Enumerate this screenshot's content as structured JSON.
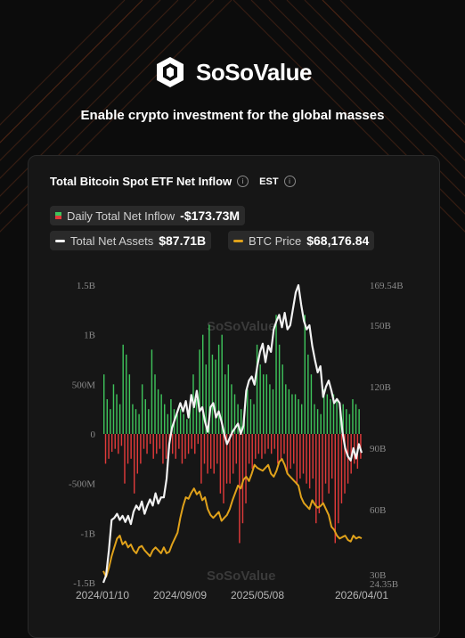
{
  "brand": {
    "name": "SoSoValue",
    "tagline": "Enable crypto investment for the global masses"
  },
  "card": {
    "title": "Total Bitcoin Spot ETF Net Inflow",
    "timezone": "EST",
    "legend": {
      "daily_label": "Daily Total Net Inflow",
      "daily_value": "-$173.73M",
      "assets_label": "Total Net Assets",
      "assets_value": "$87.71B",
      "btc_label": "BTC Price",
      "btc_value": "$68,176.84"
    },
    "watermark": "SoSoValue"
  },
  "colors": {
    "inflow": "#3ec35b",
    "outflow": "#e03a3a",
    "assets": "#f2f2f2",
    "btc": "#e0a21b"
  },
  "chart_data": {
    "type": "bar",
    "title": "Total Bitcoin Spot ETF Net Inflow",
    "x_ticks": [
      "2024/01/10",
      "2024/09/09",
      "2025/05/08",
      "2026/04/01"
    ],
    "y_left": {
      "ticks": [
        "1.5B",
        "1B",
        "500M",
        "0",
        "-500M",
        "-1B",
        "-1.5B"
      ],
      "range": [
        -1500,
        1500
      ],
      "unit": "M USD"
    },
    "y_right": {
      "ticks": [
        "169.54B",
        "150B",
        "120B",
        "90B",
        "60B",
        "30B",
        "24.35B"
      ],
      "range": [
        24.35,
        169.54
      ],
      "unit": "B USD"
    },
    "series": [
      {
        "name": "Daily Total Net Inflow",
        "kind": "bar",
        "axis": "left",
        "values_monthly_sample": [
          [
            600,
            -300,
            350,
            -250,
            250,
            -180
          ],
          [
            500,
            -150,
            400,
            -200,
            300,
            -120
          ],
          [
            900,
            -500,
            800,
            -300,
            600,
            -250
          ],
          [
            300,
            -600,
            250,
            -400,
            200,
            -300
          ],
          [
            500,
            -150,
            350,
            -200,
            250,
            -100
          ],
          [
            850,
            -250,
            600,
            -200,
            450,
            -150
          ],
          [
            400,
            -300,
            300,
            -250,
            200,
            -150
          ],
          [
            350,
            -200,
            250,
            -250,
            200,
            -150
          ],
          [
            250,
            -300,
            200,
            -250,
            150,
            -200
          ],
          [
            300,
            -150,
            600,
            -200,
            350,
            -100
          ],
          [
            850,
            -500,
            1000,
            -300,
            700,
            -400
          ],
          [
            1100,
            -350,
            800,
            -400,
            750,
            -300
          ],
          [
            900,
            -600,
            1000,
            -700,
            600,
            -500
          ],
          [
            700,
            -500,
            500,
            -400,
            400,
            -300
          ],
          [
            300,
            -1100,
            250,
            -900,
            200,
            -700
          ],
          [
            450,
            -300,
            350,
            -350,
            300,
            -250
          ],
          [
            900,
            -200,
            700,
            -250,
            600,
            -200
          ],
          [
            600,
            -150,
            500,
            -200,
            450,
            -150
          ],
          [
            1200,
            -300,
            900,
            -250,
            700,
            -200
          ],
          [
            500,
            -400,
            450,
            -350,
            400,
            -300
          ],
          [
            400,
            -500,
            350,
            -450,
            300,
            -400
          ],
          [
            1200,
            -500,
            800,
            -550,
            600,
            -450
          ],
          [
            300,
            -900,
            250,
            -800,
            200,
            -700
          ],
          [
            450,
            -500,
            400,
            -600,
            350,
            -450
          ],
          [
            400,
            -1100,
            350,
            -900,
            300,
            -700
          ],
          [
            300,
            -600,
            250,
            -500,
            200,
            -400
          ],
          [
            350,
            -300,
            300,
            -350,
            250,
            -250
          ]
        ]
      },
      {
        "name": "Total Net Assets",
        "kind": "line",
        "axis": "right",
        "values": [
          24.35,
          28,
          40,
          55,
          56,
          58,
          55,
          57,
          54,
          57,
          53,
          59,
          62,
          60,
          64,
          58,
          62,
          65,
          62,
          68,
          63,
          66,
          66,
          75,
          92,
          100,
          104,
          108,
          112,
          108,
          113,
          105,
          116,
          110,
          118,
          108,
          110,
          103,
          98,
          110,
          112,
          105,
          108,
          103,
          97,
          92,
          95,
          98,
          100,
          102,
          97,
          101,
          118,
          123,
          125,
          121,
          130,
          137,
          141,
          132,
          140,
          137,
          148,
          152,
          155,
          149,
          156,
          148,
          150,
          158,
          166,
          169.54,
          160,
          152,
          148,
          150,
          140,
          133,
          127,
          130,
          115,
          120,
          123,
          118,
          112,
          114,
          112,
          98,
          90,
          86,
          84,
          90,
          85,
          92,
          87.71
        ]
      },
      {
        "name": "BTC Price",
        "kind": "line",
        "axis": "right",
        "scale_note": "plotted on a normalized scale (not printed)",
        "values": [
          46000,
          42000,
          48000,
          56000,
          62000,
          68000,
          70000,
          64000,
          66000,
          62000,
          64000,
          60000,
          58000,
          62000,
          63000,
          60000,
          58000,
          56000,
          60000,
          62000,
          60000,
          58000,
          62000,
          58000,
          59000,
          64000,
          68000,
          72000,
          82000,
          90000,
          96000,
          95000,
          99000,
          102000,
          98000,
          100000,
          94000,
          96000,
          88000,
          84000,
          82000,
          84000,
          86000,
          80000,
          82000,
          84000,
          88000,
          94000,
          99000,
          104000,
          102000,
          108000,
          110000,
          107000,
          112000,
          118000,
          116000,
          115000,
          114000,
          116000,
          118000,
          112000,
          110000,
          114000,
          120000,
          122000,
          118000,
          112000,
          110000,
          108000,
          106000,
          104000,
          96000,
          92000,
          90000,
          88000,
          94000,
          91000,
          89000,
          90000,
          92000,
          88000,
          84000,
          76000,
          74000,
          70000,
          68000,
          69000,
          70000,
          67000,
          66000,
          70000,
          68000,
          69000,
          68176.84
        ]
      }
    ],
    "ylabel": "",
    "legend_position": "top"
  }
}
